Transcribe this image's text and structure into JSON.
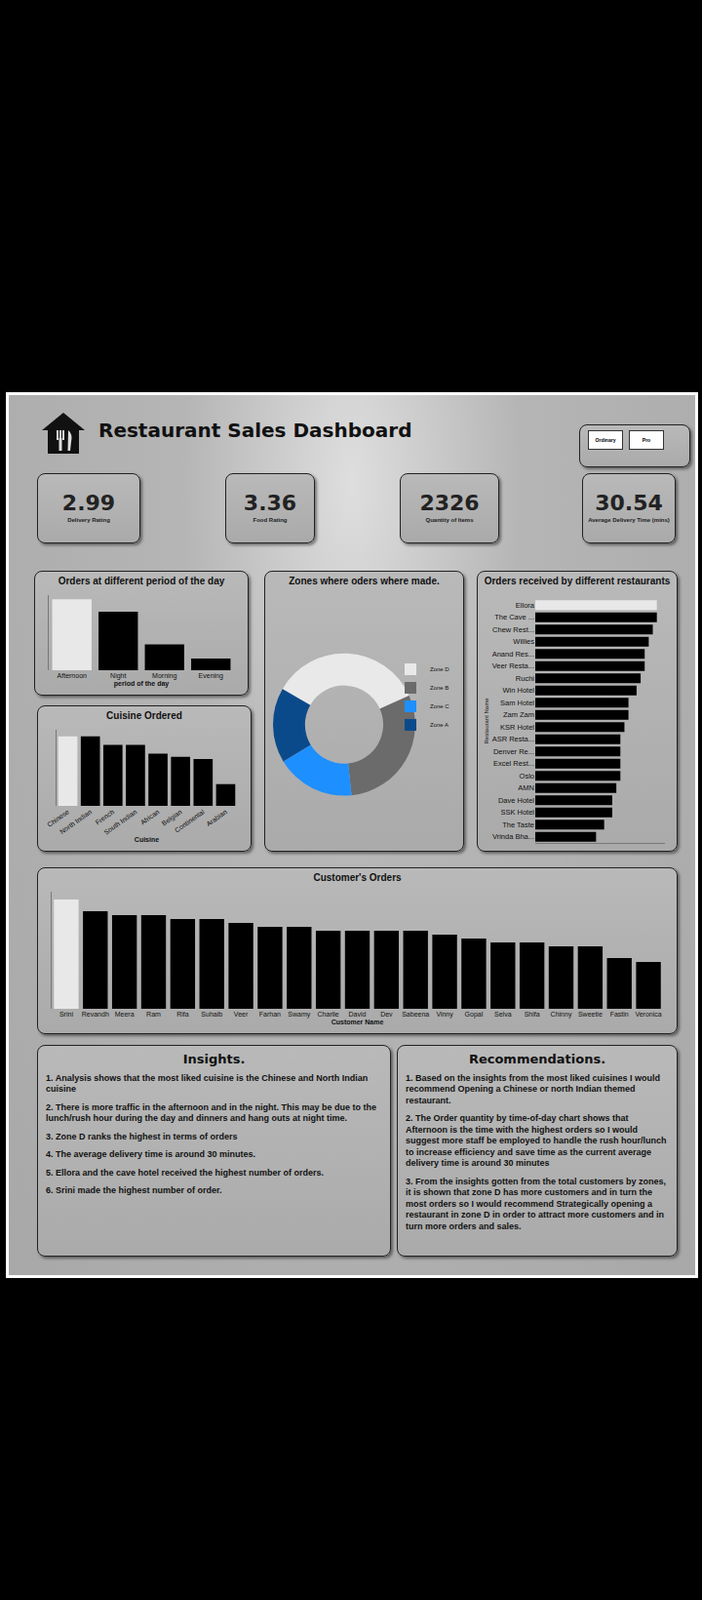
{
  "dashboard": {
    "title": "Restaurant Sales Dashboard",
    "slicer": [
      "Ordinary",
      "Pro"
    ],
    "kpis": [
      {
        "value": 2.99,
        "label": "Delivery Rating"
      },
      {
        "value": 3.36,
        "label": "Food Rating"
      },
      {
        "value": 2326,
        "label": "Quantity of Items"
      },
      {
        "value": 30.54,
        "label": "Average Delivery Time (mins)"
      }
    ],
    "insights": {
      "title": "Insights.",
      "items": [
        "1. Analysis shows that the most liked cuisine is the Chinese and North Indian cuisine",
        "2. There is more traffic in the afternoon and in the night. This may be due to the lunch/rush hour during the day and dinners and hang outs at night time.",
        "3. Zone D ranks the highest in terms of orders",
        "4. The average delivery time is around 30 minutes.",
        "5. Ellora and the cave hotel received the highest number of orders.",
        "6. Srini made the highest number of order."
      ]
    },
    "recommendations": {
      "title": "Recommendations.",
      "items": [
        "1. Based on the insights from the most liked cuisines I would recommend Opening a Chinese or north Indian themed restaurant.",
        "2. The Order quantity by time-of-day chart shows that Afternoon is the time with the highest orders so I would suggest more staff be employed to handle the rush hour/lunch to increase efficiency and save time as the current average delivery time is around 30 minutes",
        "3. From the insights gotten from the total customers by zones, it is shown that zone D has more customers and in turn the most orders so I would recommend Strategically opening a restaurant in zone D in order to attract more customers and in turn more orders and sales."
      ]
    }
  },
  "chart_data": [
    {
      "type": "bar",
      "title": "Orders at different period of the day",
      "xlabel": "period of the day",
      "categories": [
        "Afternoon",
        "Night",
        "Morning",
        "Evening"
      ],
      "values": [
        170,
        140,
        62,
        28
      ],
      "colors": [
        "#e8e8e8",
        "#000000",
        "#000000",
        "#000000"
      ],
      "ylim": [
        0,
        180
      ],
      "grid": false,
      "tick_labels": "x"
    },
    {
      "type": "bar",
      "title": "Cuisine Ordered",
      "xlabel": "Cuisine",
      "categories": [
        "Chinese",
        "North Indian",
        "French",
        "South Indian",
        "African",
        "Belgian",
        "Continental",
        "Arabian"
      ],
      "values": [
        64,
        64,
        56,
        56,
        48,
        45,
        43,
        20
      ],
      "colors": [
        "#e8e8e8",
        "#000000",
        "#000000",
        "#000000",
        "#000000",
        "#000000",
        "#000000",
        "#000000"
      ],
      "ylim": [
        0,
        70
      ],
      "grid": false,
      "tick_labels": "x"
    },
    {
      "type": "donut",
      "title": "Zones where oders where made.",
      "categories": [
        "Zone D",
        "Zone B",
        "Zone C",
        "Zone A"
      ],
      "values": [
        35,
        30,
        18,
        17
      ],
      "colors": [
        "#e9e9e9",
        "#6b6b6b",
        "#1e8fff",
        "#0b4a8a"
      ],
      "legend": "right"
    },
    {
      "type": "bar",
      "title": "Orders received by different restaurants",
      "ylabel": "Restaurant Name",
      "orientation": "horizontal",
      "categories": [
        "Ellora",
        "The Cave ...",
        "Chew Rest...",
        "Willies",
        "Anand Res...",
        "Veer Resta...",
        "Ruchi",
        "Win Hotel",
        "Sam Hotel",
        "Zam Zam",
        "KSR Hotel",
        "ASR Resta...",
        "Denver Re...",
        "Excel Rest...",
        "Oslo",
        "AMN",
        "Dave Hotel",
        "SSK Hotel",
        "The Taste",
        "Vrinda Bha..."
      ],
      "values": [
        30,
        30,
        29,
        28,
        27,
        27,
        26,
        25,
        23,
        23,
        22,
        21,
        21,
        21,
        21,
        20,
        19,
        19,
        17,
        15
      ],
      "colors": [
        "#e8e8e8",
        "#000000",
        "#000000",
        "#000000",
        "#000000",
        "#000000",
        "#000000",
        "#000000",
        "#000000",
        "#000000",
        "#000000",
        "#000000",
        "#000000",
        "#000000",
        "#000000",
        "#000000",
        "#000000",
        "#000000",
        "#000000",
        "#000000"
      ],
      "xlim": [
        0,
        32
      ],
      "grid": false,
      "tick_labels": "y"
    },
    {
      "type": "bar",
      "title": "Customer's Orders",
      "xlabel": "Customer Name",
      "categories": [
        "Srini",
        "Revandh",
        "Meera",
        "Ram",
        "Rifa",
        "Suhaib",
        "Veer",
        "Farhan",
        "Swamy",
        "Charlie",
        "David",
        "Dev",
        "Sabeena",
        "Vinny",
        "Gopal",
        "Selva",
        "Shifa",
        "Chinny",
        "Sweetie",
        "Fastin",
        "Veronica"
      ],
      "values": [
        28,
        25,
        24,
        24,
        23,
        23,
        22,
        21,
        21,
        20,
        20,
        20,
        20,
        19,
        18,
        17,
        17,
        16,
        16,
        13,
        12
      ],
      "colors": [
        "#e8e8e8",
        "#000000",
        "#000000",
        "#000000",
        "#000000",
        "#000000",
        "#000000",
        "#000000",
        "#000000",
        "#000000",
        "#000000",
        "#000000",
        "#000000",
        "#000000",
        "#000000",
        "#000000",
        "#000000",
        "#000000",
        "#000000",
        "#000000",
        "#000000"
      ],
      "ylim": [
        0,
        30
      ],
      "grid": false,
      "tick_labels": "x"
    }
  ]
}
